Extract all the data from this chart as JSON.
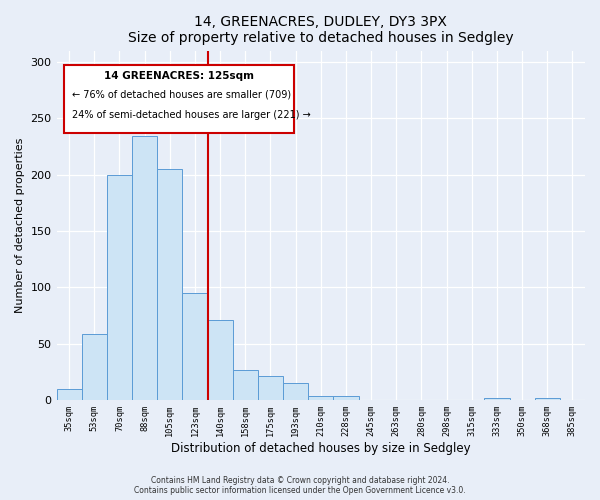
{
  "title": "14, GREENACRES, DUDLEY, DY3 3PX",
  "subtitle": "Size of property relative to detached houses in Sedgley",
  "xlabel": "Distribution of detached houses by size in Sedgley",
  "ylabel": "Number of detached properties",
  "bar_labels": [
    "35sqm",
    "53sqm",
    "70sqm",
    "88sqm",
    "105sqm",
    "123sqm",
    "140sqm",
    "158sqm",
    "175sqm",
    "193sqm",
    "210sqm",
    "228sqm",
    "245sqm",
    "263sqm",
    "280sqm",
    "298sqm",
    "315sqm",
    "333sqm",
    "350sqm",
    "368sqm",
    "385sqm"
  ],
  "bar_values": [
    10,
    59,
    200,
    234,
    205,
    95,
    71,
    27,
    21,
    15,
    4,
    4,
    0,
    0,
    0,
    0,
    0,
    2,
    0,
    2,
    0
  ],
  "bar_color": "#cde4f5",
  "bar_edge_color": "#5b9bd5",
  "vline_x": 5.5,
  "vline_color": "#cc0000",
  "annotation_title": "14 GREENACRES: 125sqm",
  "annotation_line1": "← 76% of detached houses are smaller (709)",
  "annotation_line2": "24% of semi-detached houses are larger (221) →",
  "annotation_box_color": "#cc0000",
  "ylim": [
    0,
    310
  ],
  "yticks": [
    0,
    50,
    100,
    150,
    200,
    250,
    300
  ],
  "footer1": "Contains HM Land Registry data © Crown copyright and database right 2024.",
  "footer2": "Contains public sector information licensed under the Open Government Licence v3.0.",
  "bg_color": "#e8eef8",
  "plot_bg_color": "#e8eef8"
}
